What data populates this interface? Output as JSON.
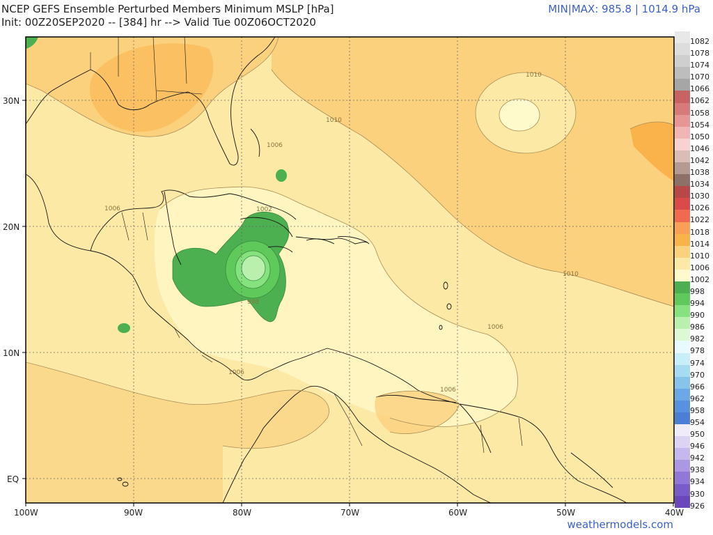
{
  "header": {
    "title_line1": "NCEP GEFS Ensemble Perturbed Members Minimum MSLP [hPa]",
    "title_line2": "Init: 00Z20SEP2020 -- [384] hr --> Valid Tue 00Z06OCT2020",
    "minmax": "MIN|MAX: 985.8 | 1014.9 hPa"
  },
  "footer": {
    "credit": "weathermodels.com"
  },
  "axes": {
    "lon_labels": [
      "100W",
      "90W",
      "80W",
      "70W",
      "60W",
      "50W",
      "40W"
    ],
    "lat_labels": [
      "30N",
      "20N",
      "10N",
      "EQ"
    ]
  },
  "contour_labels": [
    "1010",
    "1010",
    "1010",
    "1006",
    "1006",
    "1006",
    "1006",
    "1006",
    "1002",
    "998"
  ],
  "legend": [
    {
      "value": "1082",
      "color": "#e8e8e8"
    },
    {
      "value": "1078",
      "color": "#dddddd"
    },
    {
      "value": "1074",
      "color": "#cfcfcf"
    },
    {
      "value": "1070",
      "color": "#bdbdbd"
    },
    {
      "value": "1066",
      "color": "#a6a6a6"
    },
    {
      "value": "1062",
      "color": "#c76363"
    },
    {
      "value": "1058",
      "color": "#d67a7a"
    },
    {
      "value": "1054",
      "color": "#e89595"
    },
    {
      "value": "1050",
      "color": "#f2b5b5"
    },
    {
      "value": "1046",
      "color": "#f8d2d0"
    },
    {
      "value": "1042",
      "color": "#d9bdb6"
    },
    {
      "value": "1038",
      "color": "#b59a91"
    },
    {
      "value": "1034",
      "color": "#8f7069"
    },
    {
      "value": "1030",
      "color": "#b64848"
    },
    {
      "value": "1026",
      "color": "#db4a4a"
    },
    {
      "value": "1022",
      "color": "#f06a50"
    },
    {
      "value": "1018",
      "color": "#f8a058"
    },
    {
      "value": "1014",
      "color": "#fab24a"
    },
    {
      "value": "1010",
      "color": "#fbd17e"
    },
    {
      "value": "1006",
      "color": "#fde9a6"
    },
    {
      "value": "1002",
      "color": "#fffacc"
    },
    {
      "value": "998",
      "color": "#4caf50"
    },
    {
      "value": "994",
      "color": "#5fc95c"
    },
    {
      "value": "990",
      "color": "#86e27e"
    },
    {
      "value": "986",
      "color": "#b9f0ae"
    },
    {
      "value": "982",
      "color": "#dcf8d4"
    },
    {
      "value": "978",
      "color": "#e8fafd"
    },
    {
      "value": "974",
      "color": "#c8eef9"
    },
    {
      "value": "970",
      "color": "#a6dcf2"
    },
    {
      "value": "966",
      "color": "#86c4ec"
    },
    {
      "value": "962",
      "color": "#6aa8e6"
    },
    {
      "value": "958",
      "color": "#5792df"
    },
    {
      "value": "954",
      "color": "#4a7fd4"
    },
    {
      "value": "950",
      "color": "#f0ecfa"
    },
    {
      "value": "946",
      "color": "#ddd4f4"
    },
    {
      "value": "942",
      "color": "#c6b8ec"
    },
    {
      "value": "938",
      "color": "#ac98e2"
    },
    {
      "value": "934",
      "color": "#9278d6"
    },
    {
      "value": "930",
      "color": "#7a5cc8"
    },
    {
      "value": "926",
      "color": "#6a48bc"
    }
  ]
}
